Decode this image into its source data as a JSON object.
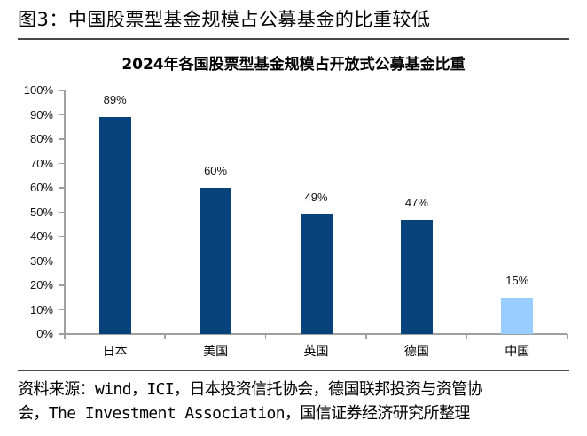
{
  "figure": {
    "title": "图3：中国股票型基金规模占公募基金的比重较低",
    "source_line1": "资料来源：wind，ICI，日本投资信托协会，德国联邦投资与资管协",
    "source_line2": "会，The Investment Association，国信证券经济研究所整理"
  },
  "chart_data": {
    "type": "bar",
    "title": "2024年各国股票型基金规模占开放式公募基金比重",
    "categories": [
      "日本",
      "美国",
      "英国",
      "德国",
      "中国"
    ],
    "values": [
      89,
      60,
      49,
      47,
      15
    ],
    "value_labels": [
      "89%",
      "60%",
      "49%",
      "47%",
      "15%"
    ],
    "bar_colors": [
      "#08427a",
      "#08427a",
      "#08427a",
      "#08427a",
      "#99ccff"
    ],
    "xlabel": "",
    "ylabel": "",
    "ylim": [
      0,
      100
    ],
    "yticks": [
      "0%",
      "10%",
      "20%",
      "30%",
      "40%",
      "50%",
      "60%",
      "70%",
      "80%",
      "90%",
      "100%"
    ],
    "grid": false,
    "legend": null
  }
}
